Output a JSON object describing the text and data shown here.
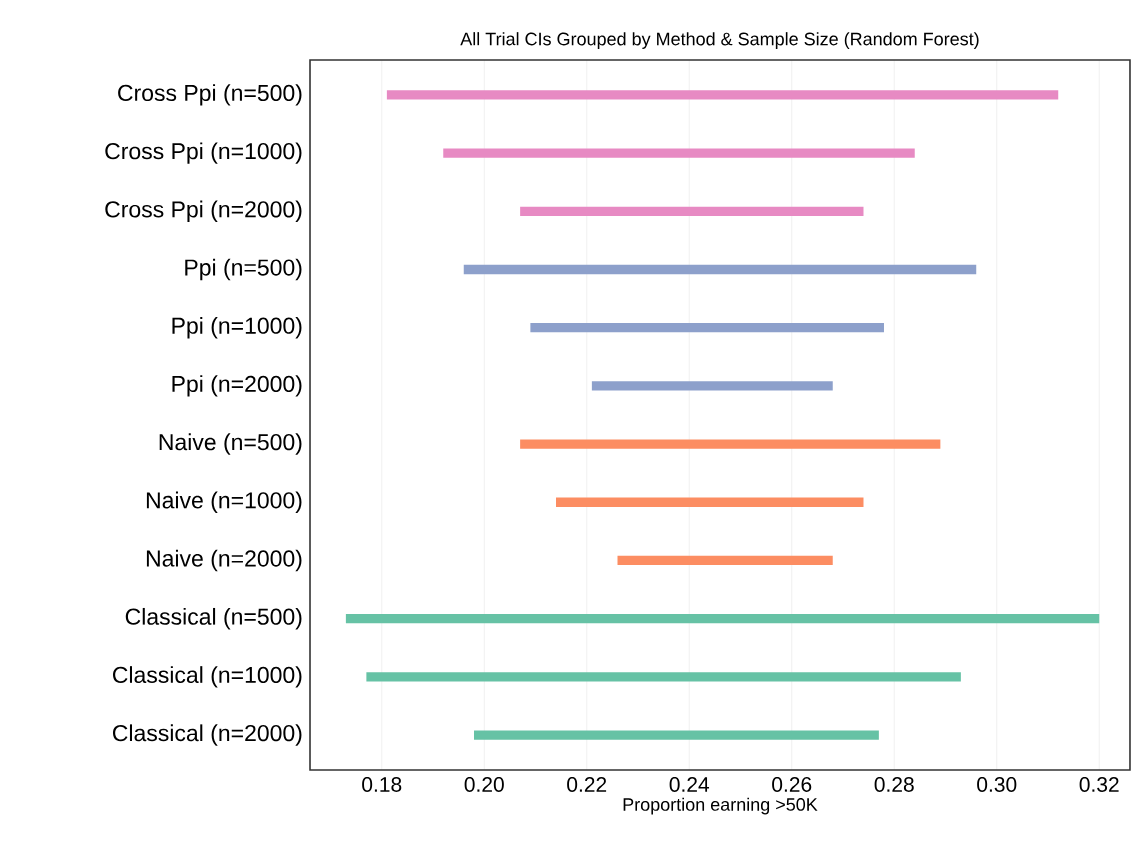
{
  "chart_data": {
    "type": "bar",
    "orientation": "horizontal",
    "title": "All Trial CIs Grouped by Method & Sample Size (Random Forest)",
    "xlabel": "Proportion earning >50K",
    "categories": [
      "Cross Ppi (n=500)",
      "Cross Ppi (n=1000)",
      "Cross Ppi (n=2000)",
      "Ppi (n=500)",
      "Ppi (n=1000)",
      "Ppi (n=2000)",
      "Naive (n=500)",
      "Naive (n=1000)",
      "Naive (n=2000)",
      "Classical (n=500)",
      "Classical (n=1000)",
      "Classical (n=2000)"
    ],
    "base": [
      0.181,
      0.192,
      0.207,
      0.196,
      0.209,
      0.221,
      0.207,
      0.214,
      0.226,
      0.173,
      0.177,
      0.198
    ],
    "values": [
      0.131,
      0.092,
      0.067,
      0.1,
      0.069,
      0.047,
      0.082,
      0.06,
      0.042,
      0.147,
      0.116,
      0.079
    ],
    "colors": [
      "#e78ac3",
      "#e78ac3",
      "#e78ac3",
      "#8da0cb",
      "#8da0cb",
      "#8da0cb",
      "#fc8d62",
      "#fc8d62",
      "#fc8d62",
      "#66c2a5",
      "#66c2a5",
      "#66c2a5"
    ],
    "xlim": [
      0.166,
      0.326
    ],
    "xticks": [
      0.18,
      {
        "value": 0.2,
        "label": "0.20"
      },
      0.22,
      0.24,
      0.26,
      0.28,
      {
        "value": 0.3,
        "label": "0.30"
      },
      0.32
    ],
    "grid": "x"
  }
}
